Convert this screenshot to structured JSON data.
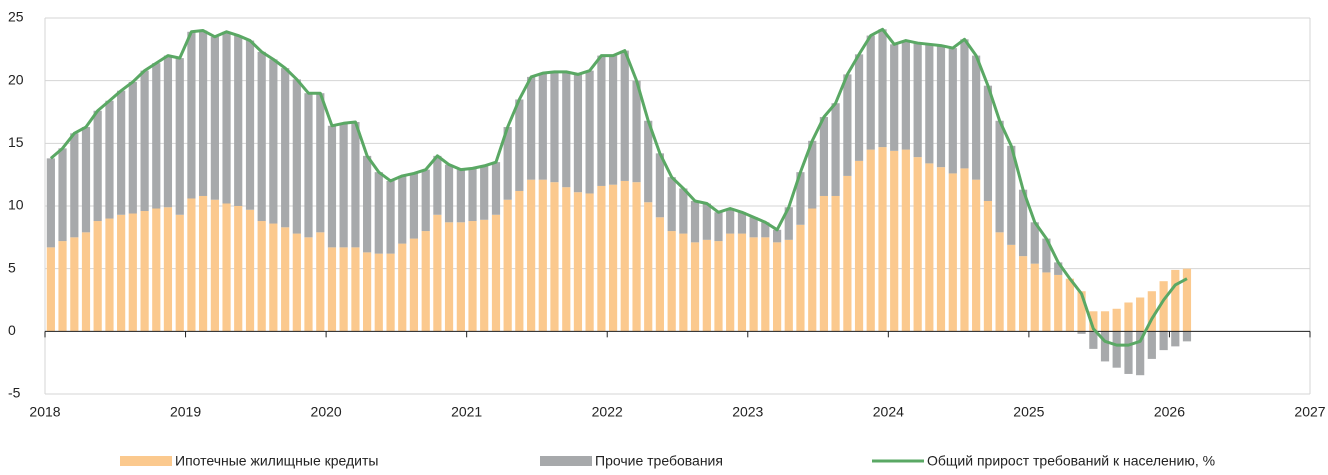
{
  "chart_data": {
    "type": "stacked-bar-line",
    "x": [
      2018,
      2018.083,
      2018.167,
      2018.25,
      2018.333,
      2018.417,
      2018.5,
      2018.583,
      2018.667,
      2018.75,
      2018.833,
      2018.917,
      2019,
      2019.083,
      2019.167,
      2019.25,
      2019.333,
      2019.417,
      2019.5,
      2019.583,
      2019.667,
      2019.75,
      2019.833,
      2019.917,
      2020,
      2020.083,
      2020.167,
      2020.25,
      2020.333,
      2020.417,
      2020.5,
      2020.583,
      2020.667,
      2020.75,
      2020.833,
      2020.917,
      2021,
      2021.083,
      2021.167,
      2021.25,
      2021.333,
      2021.417,
      2021.5,
      2021.583,
      2021.667,
      2021.75,
      2021.833,
      2021.917,
      2022,
      2022.083,
      2022.167,
      2022.25,
      2022.333,
      2022.417,
      2022.5,
      2022.583,
      2022.667,
      2022.75,
      2022.833,
      2022.917,
      2023,
      2023.083,
      2023.167,
      2023.25,
      2023.333,
      2023.417,
      2023.5,
      2023.583,
      2023.667,
      2023.75,
      2023.833,
      2023.917,
      2024,
      2024.083,
      2024.167,
      2024.25,
      2024.333,
      2024.417,
      2024.5,
      2024.583,
      2024.667,
      2024.75,
      2024.833,
      2024.917,
      2025,
      2025.083,
      2025.167,
      2025.25,
      2025.333,
      2025.417,
      2025.5,
      2025.583,
      2025.667,
      2025.75,
      2025.833,
      2025.917,
      2026,
      2026.083
    ],
    "series": [
      {
        "name": "Ипотечные жилищные кредиты",
        "color": "#fbc98e",
        "kind": "bar",
        "values": [
          6.7,
          7.2,
          7.5,
          7.9,
          8.8,
          9.0,
          9.3,
          9.4,
          9.6,
          9.8,
          9.9,
          9.3,
          10.6,
          10.8,
          10.5,
          10.2,
          10.0,
          9.7,
          8.8,
          8.6,
          8.3,
          7.8,
          7.5,
          7.9,
          6.7,
          6.7,
          6.7,
          6.3,
          6.2,
          6.2,
          7.0,
          7.4,
          8.0,
          9.3,
          8.7,
          8.7,
          8.8,
          8.9,
          9.3,
          10.5,
          11.2,
          12.1,
          12.1,
          11.9,
          11.5,
          11.1,
          11.0,
          11.6,
          11.7,
          12.0,
          11.9,
          10.3,
          9.1,
          8.0,
          7.8,
          7.1,
          7.3,
          7.2,
          7.8,
          7.8,
          7.5,
          7.5,
          7.1,
          7.3,
          8.5,
          9.8,
          10.8,
          10.8,
          12.4,
          13.6,
          14.5,
          14.7,
          14.4,
          14.5,
          13.9,
          13.4,
          13.1,
          12.6,
          13.0,
          12.1,
          10.4,
          7.9,
          6.9,
          6.0,
          5.4,
          4.7,
          4.5,
          4.2,
          3.2,
          1.6,
          1.6,
          1.8,
          2.3,
          2.7,
          3.2,
          4.0,
          4.9,
          5.0
        ]
      },
      {
        "name": "Прочие требования",
        "color": "#a7a9ab",
        "kind": "bar",
        "values": [
          7.1,
          7.4,
          8.3,
          8.4,
          8.8,
          9.4,
          9.9,
          10.5,
          11.2,
          11.6,
          12.1,
          12.5,
          13.3,
          13.2,
          13.0,
          13.7,
          13.6,
          13.5,
          13.5,
          13.1,
          12.7,
          12.3,
          11.5,
          11.1,
          9.7,
          9.9,
          10.0,
          7.7,
          6.5,
          5.8,
          5.4,
          5.2,
          4.9,
          4.7,
          4.6,
          4.2,
          4.2,
          4.3,
          4.2,
          5.8,
          7.3,
          8.2,
          8.5,
          8.8,
          9.2,
          9.4,
          9.8,
          10.4,
          10.3,
          10.4,
          8.1,
          6.5,
          5.1,
          4.3,
          3.6,
          3.3,
          2.9,
          2.3,
          2.0,
          1.7,
          1.6,
          1.2,
          1.0,
          2.6,
          4.2,
          5.4,
          6.3,
          7.4,
          8.1,
          8.5,
          9.1,
          9.4,
          8.5,
          8.7,
          9.1,
          9.5,
          9.7,
          10.0,
          10.3,
          9.9,
          9.2,
          8.9,
          7.9,
          5.3,
          3.3,
          2.7,
          1.0,
          0.0,
          -0.2,
          -1.4,
          -2.4,
          -2.9,
          -3.4,
          -3.5,
          -2.2,
          -1.5,
          -1.2,
          -0.8
        ]
      },
      {
        "name": "Общий прирост требований к населению, %",
        "color": "#5aa864",
        "kind": "line",
        "values": [
          13.8,
          14.6,
          15.8,
          16.3,
          17.6,
          18.4,
          19.2,
          19.9,
          20.8,
          21.4,
          22.0,
          21.8,
          23.9,
          24.0,
          23.5,
          23.9,
          23.6,
          23.2,
          22.3,
          21.7,
          21.0,
          20.1,
          19.0,
          19.0,
          16.4,
          16.6,
          16.7,
          14.0,
          12.7,
          12.0,
          12.4,
          12.6,
          12.9,
          14.0,
          13.3,
          12.9,
          13.0,
          13.2,
          13.5,
          16.3,
          18.5,
          20.3,
          20.6,
          20.7,
          20.7,
          20.5,
          20.8,
          22.0,
          22.0,
          22.4,
          20.0,
          16.8,
          14.2,
          12.3,
          11.4,
          10.4,
          10.2,
          9.5,
          9.8,
          9.5,
          9.1,
          8.7,
          8.1,
          9.9,
          12.7,
          15.2,
          17.1,
          18.2,
          20.5,
          22.1,
          23.6,
          24.1,
          22.9,
          23.2,
          23.0,
          22.9,
          22.8,
          22.6,
          23.3,
          22.0,
          19.6,
          16.8,
          14.8,
          11.3,
          8.7,
          7.4,
          5.5,
          4.2,
          3.0,
          0.2,
          -0.8,
          -1.1,
          -1.1,
          -0.8,
          1.0,
          2.5,
          3.7,
          4.2
        ]
      }
    ],
    "xlim": [
      2018,
      2027
    ],
    "xticks": [
      2018,
      2019,
      2020,
      2021,
      2022,
      2023,
      2024,
      2025,
      2026,
      2027
    ],
    "ylim": [
      -5,
      25
    ],
    "yticks": [
      -5,
      0,
      5,
      10,
      15,
      20,
      25
    ],
    "grid": true,
    "legend": "bottom"
  }
}
